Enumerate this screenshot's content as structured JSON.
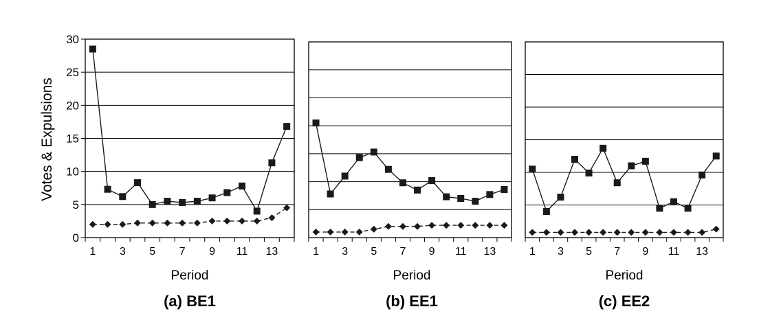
{
  "chart_data": [
    {
      "type": "line",
      "panel_title": "(a) BE1",
      "xlabel": "Period",
      "ylabel": "Votes & Expulsions",
      "x": [
        1,
        2,
        3,
        4,
        5,
        6,
        7,
        8,
        9,
        10,
        11,
        12,
        13,
        14
      ],
      "x_tick_labels": [
        "1",
        "3",
        "5",
        "7",
        "9",
        "11",
        "13"
      ],
      "ylim": [
        0,
        30
      ],
      "y_tick_labels": [
        "0",
        "5",
        "10",
        "15",
        "20",
        "25",
        "30"
      ],
      "grid": true,
      "series": [
        {
          "marker": "square",
          "line": "solid",
          "color": "#1a1a1a",
          "values": [
            28.5,
            7.3,
            6.2,
            8.3,
            5.0,
            5.5,
            5.3,
            5.5,
            6.0,
            6.8,
            7.8,
            4.0,
            11.3,
            16.8
          ]
        },
        {
          "marker": "diamond",
          "line": "dashed",
          "color": "#1a1a1a",
          "values": [
            2.0,
            2.0,
            2.0,
            2.2,
            2.2,
            2.2,
            2.2,
            2.2,
            2.5,
            2.5,
            2.5,
            2.5,
            3.0,
            4.5
          ]
        }
      ]
    },
    {
      "type": "line",
      "panel_title": "(b) EE1",
      "xlabel": "Period",
      "ylabel": "",
      "x": [
        1,
        2,
        3,
        4,
        5,
        6,
        7,
        8,
        9,
        10,
        11,
        12,
        13,
        14
      ],
      "x_tick_labels": [
        "1",
        "3",
        "5",
        "7",
        "9",
        "11",
        "13"
      ],
      "ylim": [
        0,
        35
      ],
      "grid": true,
      "series": [
        {
          "marker": "square",
          "line": "solid",
          "color": "#1a1a1a",
          "values": [
            20.5,
            7.8,
            11.0,
            14.3,
            15.3,
            12.2,
            9.8,
            8.5,
            10.2,
            7.3,
            7.0,
            6.5,
            7.7,
            8.6
          ]
        },
        {
          "marker": "diamond",
          "line": "dashed",
          "color": "#1a1a1a",
          "values": [
            1.0,
            1.0,
            1.0,
            1.0,
            1.5,
            2.0,
            2.0,
            2.0,
            2.2,
            2.2,
            2.2,
            2.2,
            2.2,
            2.2
          ]
        }
      ]
    },
    {
      "type": "line",
      "panel_title": "(c) EE2",
      "xlabel": "Period",
      "ylabel": "",
      "x": [
        1,
        2,
        3,
        4,
        5,
        6,
        7,
        8,
        9,
        10,
        11,
        12,
        13,
        14
      ],
      "x_tick_labels": [
        "1",
        "3",
        "5",
        "7",
        "9",
        "11",
        "13"
      ],
      "ylim": [
        0,
        30
      ],
      "grid": true,
      "series": [
        {
          "marker": "square",
          "line": "solid",
          "color": "#1a1a1a",
          "values": [
            10.5,
            4.0,
            6.2,
            12.0,
            9.9,
            13.7,
            8.4,
            11.0,
            11.7,
            4.5,
            5.5,
            4.5,
            9.6,
            12.5
          ]
        },
        {
          "marker": "diamond",
          "line": "dashed",
          "color": "#1a1a1a",
          "values": [
            0.8,
            0.8,
            0.8,
            0.8,
            0.8,
            0.8,
            0.8,
            0.8,
            0.8,
            0.8,
            0.8,
            0.8,
            0.8,
            1.3
          ]
        }
      ]
    }
  ]
}
